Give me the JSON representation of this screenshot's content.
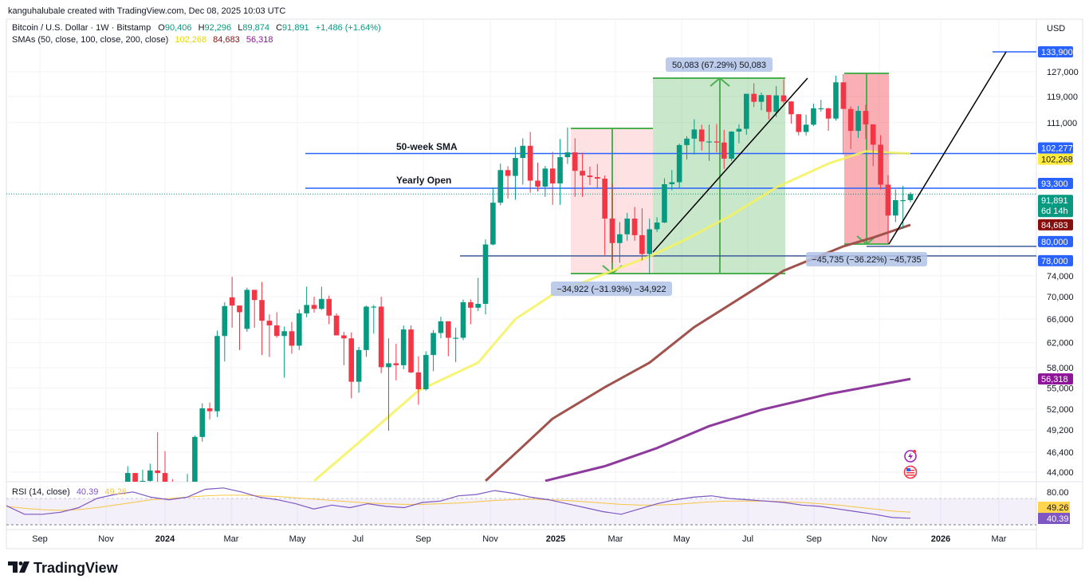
{
  "attribution": "kanguhalubale created with TradingView.com, Dec 08, 2025 10:03 UTC",
  "legend": {
    "symbol": "Bitcoin / U.S. Dollar · 1W · Bitstamp",
    "o_label": "O",
    "o": "90,406",
    "h_label": "H",
    "h": "92,296",
    "l_label": "L",
    "l": "89,874",
    "c_label": "C",
    "c": "91,891",
    "change": "+1,486 (+1.64%)",
    "sma_label": "SMAs (50, close, 100, close, 200, close)",
    "sma50": "102,268",
    "sma100": "84,683",
    "sma200": "56,318"
  },
  "rsi_legend": {
    "label": "RSI (14, close)",
    "rsi": "40.39",
    "ma": "49.26"
  },
  "currency": "USD",
  "annotations": {
    "sma_line_label": "50-week SMA",
    "yearly_open_label": "Yearly Open",
    "measure1": "−34,922 (−31.93%) −34,922",
    "measure2": "50,083 (67.29%) 50,083",
    "measure3": "−45,735 (−36.22%) −45,735"
  },
  "price_badges": [
    {
      "text": "133,900",
      "value": 133900,
      "color": "#2962ff",
      "fg": "#ffffff"
    },
    {
      "text": "102,277",
      "value": 102277,
      "color": "#2962ff",
      "fg": "#ffffff"
    },
    {
      "text": "102,268",
      "value": 102268,
      "color": "#ffeb3b",
      "fg": "#131722"
    },
    {
      "text": "93,300",
      "value": 93300,
      "color": "#2962ff",
      "fg": "#ffffff"
    },
    {
      "text": "91,891",
      "sub": "6d 14h",
      "value": 91891,
      "color": "#089981",
      "fg": "#ffffff"
    },
    {
      "text": "84,683",
      "value": 84683,
      "color": "#880e0e",
      "fg": "#ffffff"
    },
    {
      "text": "80,000",
      "value": 80000,
      "color": "#2962ff",
      "fg": "#ffffff"
    },
    {
      "text": "78,000",
      "value": 78000,
      "color": "#2962ff",
      "fg": "#ffffff"
    },
    {
      "text": "56,318",
      "value": 56318,
      "color": "#8e1599",
      "fg": "#ffffff"
    }
  ],
  "rsi_axis": {
    "level": "80.00",
    "ma_badge": "49.26",
    "rsi_badge": "40.39"
  },
  "time_axis": [
    "Sep",
    "Nov",
    "2024",
    "Mar",
    "May",
    "Jul",
    "Sep",
    "Nov",
    "2025",
    "Mar",
    "May",
    "Jul",
    "Sep",
    "Nov",
    "2026",
    "Mar"
  ],
  "branding": "TradingView",
  "colors": {
    "up": "#089981",
    "down": "#f23645",
    "sma50": "#ffeb3b",
    "sma100": "#a0524d",
    "sma200": "#8e1599",
    "hline": "#2962ff",
    "rsi": "#7e57c2",
    "rsi_ma": "#f5c542"
  },
  "chart_data": {
    "type": "candlestick",
    "title": "Bitcoin / U.S. Dollar · 1W · Bitstamp",
    "ylabel": "USD",
    "yscale": "log",
    "ylim": [
      43000,
      140000
    ],
    "y_ticks": [
      127000,
      119000,
      111000,
      74000,
      70000,
      66000,
      62000,
      58000,
      55000,
      52000,
      49200,
      46400,
      44000
    ],
    "candles_columns": [
      "week",
      "open",
      "high",
      "low",
      "close"
    ],
    "candles": [
      [
        "2023-12-04",
        39900,
        44700,
        39900,
        43900
      ],
      [
        "2023-12-11",
        43900,
        43500,
        40500,
        41300
      ],
      [
        "2023-12-18",
        41300,
        44300,
        40500,
        43000
      ],
      [
        "2023-12-25",
        43000,
        45000,
        41400,
        44200
      ],
      [
        "2024-01-01",
        44200,
        48900,
        40700,
        43900
      ],
      [
        "2024-01-08",
        43900,
        46500,
        41500,
        41700
      ],
      [
        "2024-01-15",
        41700,
        43200,
        40300,
        41600
      ],
      [
        "2024-01-22",
        41600,
        42800,
        38500,
        42000
      ],
      [
        "2024-01-29",
        42000,
        43800,
        41800,
        42600
      ],
      [
        "2024-02-05",
        42600,
        48500,
        42500,
        48300
      ],
      [
        "2024-02-12",
        48300,
        52800,
        47700,
        52100
      ],
      [
        "2024-02-19",
        52100,
        52900,
        50600,
        51700
      ],
      [
        "2024-02-26",
        51700,
        64000,
        50900,
        63100
      ],
      [
        "2024-03-04",
        63100,
        69000,
        59000,
        68300
      ],
      [
        "2024-03-11",
        69900,
        73800,
        64500,
        68400
      ],
      [
        "2024-03-18",
        68400,
        68100,
        60800,
        67200
      ],
      [
        "2024-03-25",
        64300,
        71700,
        63800,
        71300
      ],
      [
        "2024-04-01",
        71300,
        71300,
        64500,
        69400
      ],
      [
        "2024-04-08",
        69400,
        72800,
        60000,
        65700
      ],
      [
        "2024-04-15",
        65700,
        66800,
        59700,
        64900
      ],
      [
        "2024-04-22",
        64900,
        67200,
        62800,
        63100
      ],
      [
        "2024-04-29",
        63100,
        64700,
        56500,
        63900
      ],
      [
        "2024-05-06",
        63900,
        65500,
        60200,
        61500
      ],
      [
        "2024-05-13",
        61500,
        67700,
        60800,
        67000
      ],
      [
        "2024-05-20",
        67000,
        71900,
        66300,
        68500
      ],
      [
        "2024-05-27",
        68500,
        70000,
        67100,
        67800
      ],
      [
        "2024-06-03",
        67800,
        71900,
        67600,
        69600
      ],
      [
        "2024-06-10",
        69600,
        70200,
        65100,
        66600
      ],
      [
        "2024-06-17",
        66600,
        67000,
        63400,
        63200
      ],
      [
        "2024-06-24",
        63200,
        63800,
        58400,
        62700
      ],
      [
        "2024-07-01",
        62700,
        63700,
        53500,
        55900
      ],
      [
        "2024-07-08",
        55900,
        61300,
        54300,
        60800
      ],
      [
        "2024-07-15",
        60800,
        68400,
        59700,
        68200
      ],
      [
        "2024-07-22",
        68200,
        68500,
        63500,
        68200
      ],
      [
        "2024-07-29",
        68200,
        70000,
        57200,
        58100
      ],
      [
        "2024-08-05",
        58100,
        62700,
        49100,
        58700
      ],
      [
        "2024-08-12",
        58700,
        61800,
        56100,
        58400
      ],
      [
        "2024-08-19",
        58400,
        64900,
        57800,
        64200
      ],
      [
        "2024-08-26",
        64200,
        64900,
        57200,
        57300
      ],
      [
        "2024-09-02",
        57300,
        59800,
        52600,
        54800
      ],
      [
        "2024-09-09",
        54800,
        60600,
        54600,
        60000
      ],
      [
        "2024-09-16",
        60000,
        64100,
        57500,
        63600
      ],
      [
        "2024-09-23",
        63600,
        66400,
        62700,
        65600
      ],
      [
        "2024-09-30",
        65600,
        65600,
        59800,
        62800
      ],
      [
        "2024-10-07",
        62800,
        64500,
        58900,
        62800
      ],
      [
        "2024-10-14",
        62800,
        69500,
        62400,
        69000
      ],
      [
        "2024-10-21",
        69000,
        69500,
        65100,
        68000
      ],
      [
        "2024-10-28",
        68000,
        73600,
        67400,
        68700
      ],
      [
        "2024-11-04",
        68700,
        81500,
        66800,
        80400
      ],
      [
        "2024-11-11",
        80400,
        93500,
        80200,
        89800
      ],
      [
        "2024-11-18",
        89800,
        99600,
        89200,
        97900
      ],
      [
        "2024-11-25",
        97900,
        98900,
        90800,
        96400
      ],
      [
        "2024-12-02",
        96400,
        104000,
        90500,
        101100
      ],
      [
        "2024-12-09",
        101100,
        106500,
        94200,
        104400
      ],
      [
        "2024-12-16",
        104400,
        108300,
        92200,
        95200
      ],
      [
        "2024-12-23",
        95200,
        99800,
        92500,
        93700
      ],
      [
        "2024-12-30",
        93700,
        99000,
        91200,
        98300
      ],
      [
        "2025-01-06",
        98300,
        102700,
        89300,
        94500
      ],
      [
        "2025-01-13",
        94500,
        106300,
        89300,
        101300
      ],
      [
        "2025-01-20",
        101300,
        109600,
        99500,
        102600
      ],
      [
        "2025-01-27",
        102600,
        106500,
        91200,
        97700
      ],
      [
        "2025-02-03",
        97700,
        102500,
        91200,
        96500
      ],
      [
        "2025-02-10",
        96500,
        98800,
        94100,
        96100
      ],
      [
        "2025-02-17",
        96100,
        99500,
        93400,
        95700
      ],
      [
        "2025-02-24",
        95700,
        96500,
        78200,
        86100
      ],
      [
        "2025-03-03",
        86100,
        94400,
        76600,
        80700
      ],
      [
        "2025-03-10",
        80700,
        85300,
        76600,
        82600
      ],
      [
        "2025-03-17",
        82600,
        87400,
        81200,
        86100
      ],
      [
        "2025-03-24",
        86100,
        88800,
        81200,
        82400
      ],
      [
        "2025-03-31",
        82400,
        88500,
        77100,
        78400
      ],
      [
        "2025-04-07",
        78400,
        86100,
        74400,
        83700
      ],
      [
        "2025-04-14",
        83700,
        86400,
        83100,
        85200
      ],
      [
        "2025-04-21",
        85200,
        95800,
        85100,
        94300
      ],
      [
        "2025-04-28",
        94300,
        97900,
        92800,
        94800
      ],
      [
        "2025-05-05",
        94800,
        105000,
        93400,
        104600
      ],
      [
        "2025-05-12",
        104600,
        107100,
        100700,
        106400
      ],
      [
        "2025-05-19",
        106400,
        112000,
        102000,
        109000
      ],
      [
        "2025-05-26",
        109000,
        110400,
        103100,
        105600
      ],
      [
        "2025-06-02",
        105600,
        110400,
        100300,
        105600
      ],
      [
        "2025-06-09",
        105600,
        110600,
        102600,
        105300
      ],
      [
        "2025-06-16",
        105300,
        108900,
        98200,
        100900
      ],
      [
        "2025-06-23",
        100900,
        108500,
        100300,
        108400
      ],
      [
        "2025-06-30",
        108400,
        110500,
        105100,
        109200
      ],
      [
        "2025-07-07",
        109200,
        119800,
        107500,
        119800
      ],
      [
        "2025-07-14",
        119800,
        123200,
        115700,
        117300
      ],
      [
        "2025-07-21",
        117300,
        120200,
        114700,
        119400
      ],
      [
        "2025-07-28",
        119400,
        119400,
        111900,
        114200
      ],
      [
        "2025-08-04",
        114200,
        122300,
        112700,
        119300
      ],
      [
        "2025-08-11",
        119300,
        124500,
        116800,
        117400
      ],
      [
        "2025-08-18",
        117400,
        117500,
        110700,
        113500
      ],
      [
        "2025-08-25",
        113500,
        113600,
        107300,
        108300
      ],
      [
        "2025-09-01",
        108300,
        113400,
        107300,
        110400
      ],
      [
        "2025-09-08",
        110400,
        116700,
        110000,
        115300
      ],
      [
        "2025-09-15",
        115300,
        117900,
        114300,
        115300
      ],
      [
        "2025-09-22",
        115300,
        115400,
        108600,
        112200
      ],
      [
        "2025-09-29",
        112200,
        125700,
        111600,
        123500
      ],
      [
        "2025-10-06",
        123500,
        126200,
        102000,
        115100
      ],
      [
        "2025-10-13",
        115100,
        115900,
        103500,
        108600
      ],
      [
        "2025-10-20",
        108600,
        116000,
        106600,
        114500
      ],
      [
        "2025-10-27",
        114500,
        116400,
        106300,
        110500
      ],
      [
        "2025-11-03",
        110500,
        110500,
        98900,
        104700
      ],
      [
        "2025-11-10",
        104700,
        107400,
        93000,
        94200
      ],
      [
        "2025-11-17",
        94200,
        96600,
        80600,
        86800
      ],
      [
        "2025-11-24",
        86800,
        93000,
        85300,
        90400
      ],
      [
        "2025-12-01",
        90400,
        93900,
        83800,
        90400
      ],
      [
        "2025-12-08",
        90406,
        92296,
        89874,
        91891
      ]
    ],
    "series": [
      {
        "name": "SMA 50",
        "points": [
          [
            "2024-05-27",
            43000
          ],
          [
            "2024-07-08",
            47600
          ],
          [
            "2024-09-02",
            54600
          ],
          [
            "2024-10-28",
            58800
          ],
          [
            "2024-12-02",
            66000
          ],
          [
            "2025-01-06",
            70400
          ],
          [
            "2025-03-03",
            75000
          ],
          [
            "2025-04-07",
            77900
          ],
          [
            "2025-05-12",
            81600
          ],
          [
            "2025-06-23",
            86900
          ],
          [
            "2025-08-04",
            93500
          ],
          [
            "2025-09-22",
            99600
          ],
          [
            "2025-10-27",
            102900
          ],
          [
            "2025-12-08",
            102268
          ]
        ]
      },
      {
        "name": "SMA 100",
        "points": [
          [
            "2024-11-04",
            43000
          ],
          [
            "2024-12-09",
            47100
          ],
          [
            "2025-01-06",
            50700
          ],
          [
            "2025-02-24",
            55100
          ],
          [
            "2025-04-07",
            58800
          ],
          [
            "2025-05-19",
            64600
          ],
          [
            "2025-06-30",
            69600
          ],
          [
            "2025-08-11",
            75000
          ],
          [
            "2025-10-06",
            80000
          ],
          [
            "2025-11-03",
            81900
          ],
          [
            "2025-12-08",
            84683
          ]
        ]
      },
      {
        "name": "SMA 200",
        "points": [
          [
            "2024-12-30",
            43000
          ],
          [
            "2025-02-24",
            44700
          ],
          [
            "2025-04-14",
            46900
          ],
          [
            "2025-06-02",
            49700
          ],
          [
            "2025-07-21",
            51900
          ],
          [
            "2025-09-22",
            54100
          ],
          [
            "2025-12-08",
            56318
          ]
        ]
      }
    ],
    "horizontal_levels": [
      {
        "label": "50-week SMA",
        "value": 102277
      },
      {
        "label": "Yearly Open",
        "value": 93300
      },
      {
        "label": "",
        "value": 78000
      },
      {
        "label": "",
        "value": 80000
      },
      {
        "label": "",
        "value": 133900
      }
    ],
    "rsi": {
      "ylim": [
        0,
        100
      ],
      "bands": [
        30,
        70
      ],
      "values": [
        59,
        46,
        46,
        49,
        56,
        70,
        76,
        80,
        72,
        68,
        72,
        84,
        86,
        80,
        72,
        68,
        62,
        54,
        60,
        56,
        62,
        58,
        56,
        64,
        66,
        74,
        76,
        82,
        78,
        72,
        68,
        62,
        56,
        50,
        46,
        54,
        62,
        68,
        72,
        74,
        70,
        68,
        66,
        64,
        60,
        58,
        54,
        50,
        46,
        41,
        40
      ],
      "ma": [
        58,
        55,
        53,
        52,
        53,
        56,
        60,
        64,
        68,
        70,
        72,
        74,
        75,
        75,
        74,
        73,
        71,
        69,
        67,
        65,
        63,
        62,
        61,
        61,
        62,
        63,
        65,
        67,
        68,
        69,
        68,
        67,
        65,
        63,
        61,
        60,
        60,
        61,
        63,
        65,
        66,
        66,
        66,
        65,
        64,
        62,
        60,
        57,
        54,
        51,
        49
      ]
    }
  }
}
